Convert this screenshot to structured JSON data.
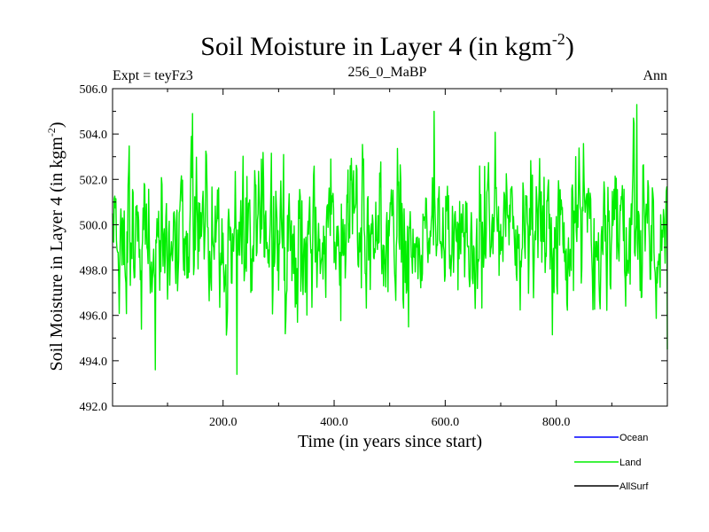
{
  "chart_data": {
    "type": "line",
    "title": "Soil Moisture in Layer 4 (in kgm",
    "title_sup": "-2",
    "title_end": ")",
    "subtitle_left": "Expt = teyFz3",
    "subtitle_center": "256_0_MaBP",
    "subtitle_right": "Ann",
    "xlabel": "Time (in years since start)",
    "ylabel": "Soil Moisture in Layer 4 (in kgm",
    "ylabel_sup": "-2",
    "ylabel_end": ")",
    "xlim": [
      1,
      1000
    ],
    "ylim": [
      492,
      506
    ],
    "xticks": [
      200,
      400,
      600,
      800
    ],
    "xtick_labels": [
      "200.0",
      "400.0",
      "600.0",
      "800.0"
    ],
    "yticks": [
      492,
      494,
      496,
      498,
      500,
      502,
      504,
      506
    ],
    "ytick_labels": [
      "492.0",
      "494.0",
      "496.0",
      "498.0",
      "500.0",
      "502.0",
      "504.0",
      "506.0"
    ],
    "legend_position": "bottom-right",
    "series": [
      {
        "name": "Ocean",
        "color": "#0000ff",
        "values": []
      },
      {
        "name": "Land",
        "color": "#00ee00",
        "mean": 499.6,
        "amplitude_range": [
          493.4,
          505.3
        ],
        "key_points": [
          [
            1,
            500.5
          ],
          [
            78,
            493.6
          ],
          [
            145,
            504.9
          ],
          [
            225,
            493.4
          ],
          [
            580,
            505.0
          ],
          [
            945,
            505.3
          ],
          [
            1000,
            494.5
          ]
        ]
      },
      {
        "name": "AllSurf",
        "color": "#000000",
        "values": []
      }
    ]
  }
}
